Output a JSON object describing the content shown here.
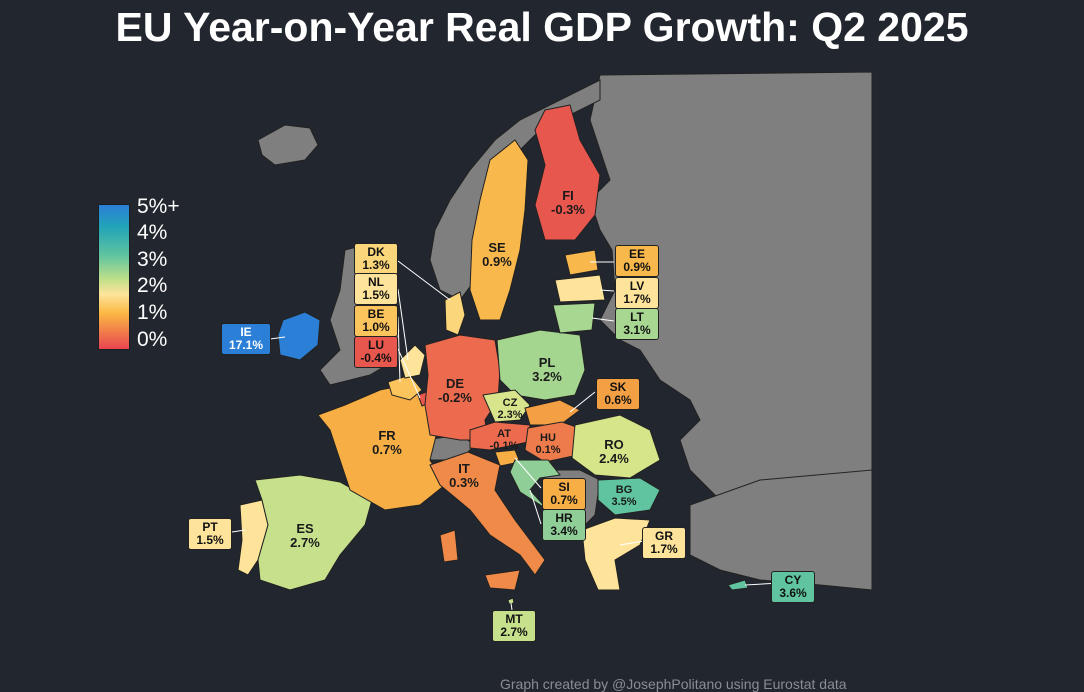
{
  "title": "EU Year-on-Year Real GDP Growth: Q2 2025",
  "credit": "Graph created by @JosephPolitano using Eurostat data",
  "legend": {
    "ticks": [
      "5%+",
      "4%",
      "3%",
      "2%",
      "1%",
      "0%"
    ],
    "gradient_colors": [
      "#2b7fd6",
      "#22a3b8",
      "#5fc49f",
      "#c2e08a",
      "#fde49a",
      "#fbb844",
      "#f17d4a",
      "#e8444f"
    ]
  },
  "colors": {
    "background": "#22262e",
    "non_eu": "#7f7f7f",
    "negative": "#e8574e"
  },
  "countries": {
    "IE": {
      "code": "IE",
      "value": "17.1%",
      "color": "#2b7fd6"
    },
    "DK": {
      "code": "DK",
      "value": "1.3%",
      "color": "#fcd67a"
    },
    "NL": {
      "code": "NL",
      "value": "1.5%",
      "color": "#fde49a"
    },
    "BE": {
      "code": "BE",
      "value": "1.0%",
      "color": "#fbc45c"
    },
    "LU": {
      "code": "LU",
      "value": "-0.4%",
      "color": "#e8574e"
    },
    "PT": {
      "code": "PT",
      "value": "1.5%",
      "color": "#fde49a"
    },
    "ES": {
      "code": "ES",
      "value": "2.7%",
      "color": "#c6e08c"
    },
    "FR": {
      "code": "FR",
      "value": "0.7%",
      "color": "#f6ae45"
    },
    "DE": {
      "code": "DE",
      "value": "-0.2%",
      "color": "#ec6a4e"
    },
    "IT": {
      "code": "IT",
      "value": "0.3%",
      "color": "#f08a48"
    },
    "AT": {
      "code": "AT",
      "value": "-0.1%",
      "color": "#ec6a4e"
    },
    "CZ": {
      "code": "CZ",
      "value": "2.3%",
      "color": "#d9e58c"
    },
    "HU": {
      "code": "HU",
      "value": "0.1%",
      "color": "#ee7b4b"
    },
    "PL": {
      "code": "PL",
      "value": "3.2%",
      "color": "#a4d690"
    },
    "SK": {
      "code": "SK",
      "value": "0.6%",
      "color": "#f3a044"
    },
    "SI": {
      "code": "SI",
      "value": "0.7%",
      "color": "#f6ae45"
    },
    "HR": {
      "code": "HR",
      "value": "3.4%",
      "color": "#8fce97"
    },
    "RO": {
      "code": "RO",
      "value": "2.4%",
      "color": "#d6e48a"
    },
    "BG": {
      "code": "BG",
      "value": "3.5%",
      "color": "#5fc49f"
    },
    "GR": {
      "code": "GR",
      "value": "1.7%",
      "color": "#fde49a"
    },
    "CY": {
      "code": "CY",
      "value": "3.6%",
      "color": "#5fc49f"
    },
    "MT": {
      "code": "MT",
      "value": "2.7%",
      "color": "#c6e08c"
    },
    "SE": {
      "code": "SE",
      "value": "0.9%",
      "color": "#f8b84c"
    },
    "FI": {
      "code": "FI",
      "value": "-0.3%",
      "color": "#e8574e"
    },
    "EE": {
      "code": "EE",
      "value": "0.9%",
      "color": "#f8b84c"
    },
    "LV": {
      "code": "LV",
      "value": "1.7%",
      "color": "#fde49a"
    },
    "LT": {
      "code": "LT",
      "value": "3.1%",
      "color": "#a8d792"
    }
  }
}
